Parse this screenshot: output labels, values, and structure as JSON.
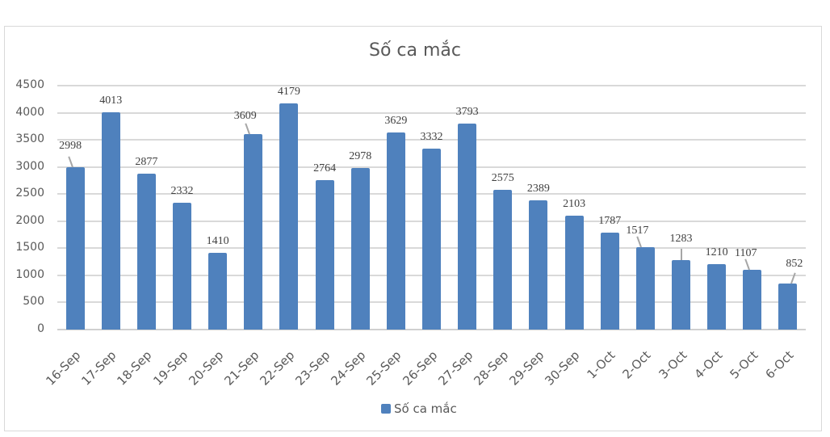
{
  "chart_data": {
    "type": "bar",
    "title": "Số ca mắc",
    "xlabel": "",
    "ylabel": "",
    "ylim": [
      0,
      4500
    ],
    "yticks": [
      0,
      500,
      1000,
      1500,
      2000,
      2500,
      3000,
      3500,
      4000,
      4500
    ],
    "grid": true,
    "legend_position": "bottom",
    "categories": [
      "16-Sep",
      "17-Sep",
      "18-Sep",
      "19-Sep",
      "20-Sep",
      "21-Sep",
      "22-Sep",
      "23-Sep",
      "24-Sep",
      "25-Sep",
      "26-Sep",
      "27-Sep",
      "28-Sep",
      "29-Sep",
      "30-Sep",
      "1-Oct",
      "2-Oct",
      "3-Oct",
      "4-Oct",
      "5-Oct",
      "6-Oct"
    ],
    "series": [
      {
        "name": "Số ca mắc",
        "color": "#4f81bd",
        "values": [
          2998,
          4013,
          2877,
          2332,
          1410,
          3609,
          4179,
          2764,
          2978,
          3629,
          3332,
          3793,
          2575,
          2389,
          2103,
          1787,
          1517,
          1283,
          1210,
          1107,
          852
        ]
      }
    ]
  },
  "legend": {
    "label": "Số ca mắc"
  }
}
